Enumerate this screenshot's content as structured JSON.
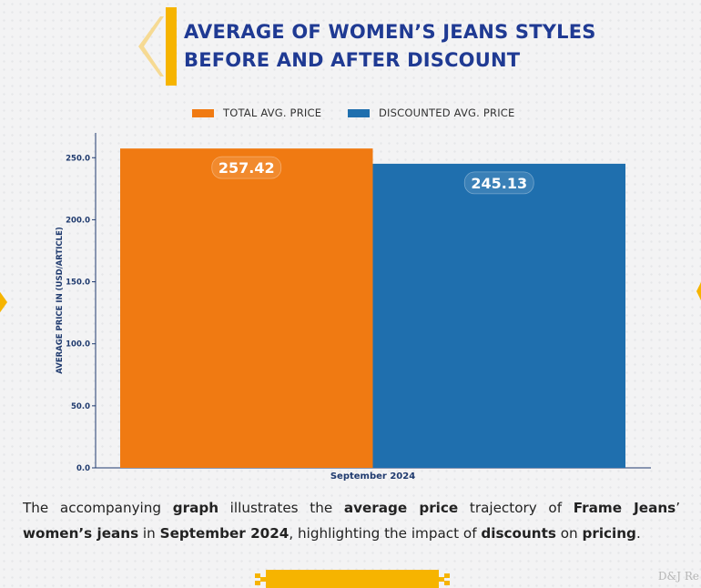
{
  "title": {
    "line1": "AVERAGE OF WOMEN’S JEANS STYLES",
    "line2": "BEFORE AND AFTER DISCOUNT"
  },
  "colors": {
    "title": "#1f3a93",
    "accent": "#f6b400",
    "series_total": "#f07a12",
    "series_discounted": "#1f6fae"
  },
  "chart_data": {
    "type": "bar",
    "categories": [
      "September 2024"
    ],
    "series": [
      {
        "name": "TOTAL AVG. PRICE",
        "values": [
          257.42
        ],
        "color": "#f07a12"
      },
      {
        "name": "DISCOUNTED AVG. PRICE",
        "values": [
          245.13
        ],
        "color": "#1f6fae"
      }
    ],
    "data_labels": [
      "257.42",
      "245.13"
    ],
    "xlabel": "September 2024",
    "ylabel": "AVERAGE PRICE IN (USD/ARTICLE)",
    "ylim": [
      0,
      270
    ],
    "yticks": [
      0,
      50,
      100,
      150,
      200,
      250
    ],
    "ytick_labels": [
      "0.0",
      "50.0",
      "100.0",
      "150.0",
      "200.0",
      "250.0"
    ],
    "legend_position": "top-center",
    "grid": false
  },
  "description": {
    "p1": "The accompanying ",
    "b1": "graph",
    "p2": " illustrates the ",
    "b2": "average price",
    "p3": " trajectory of ",
    "b3": "Frame Jeans",
    "p4": "’ ",
    "b4": "women’s jeans",
    "p5": " in ",
    "b5": "September 2024",
    "p6": ", highlighting the impact of ",
    "b6": "discounts",
    "p7": " on ",
    "b7": "pricing",
    "p8": "."
  },
  "watermark": "D&J Re"
}
